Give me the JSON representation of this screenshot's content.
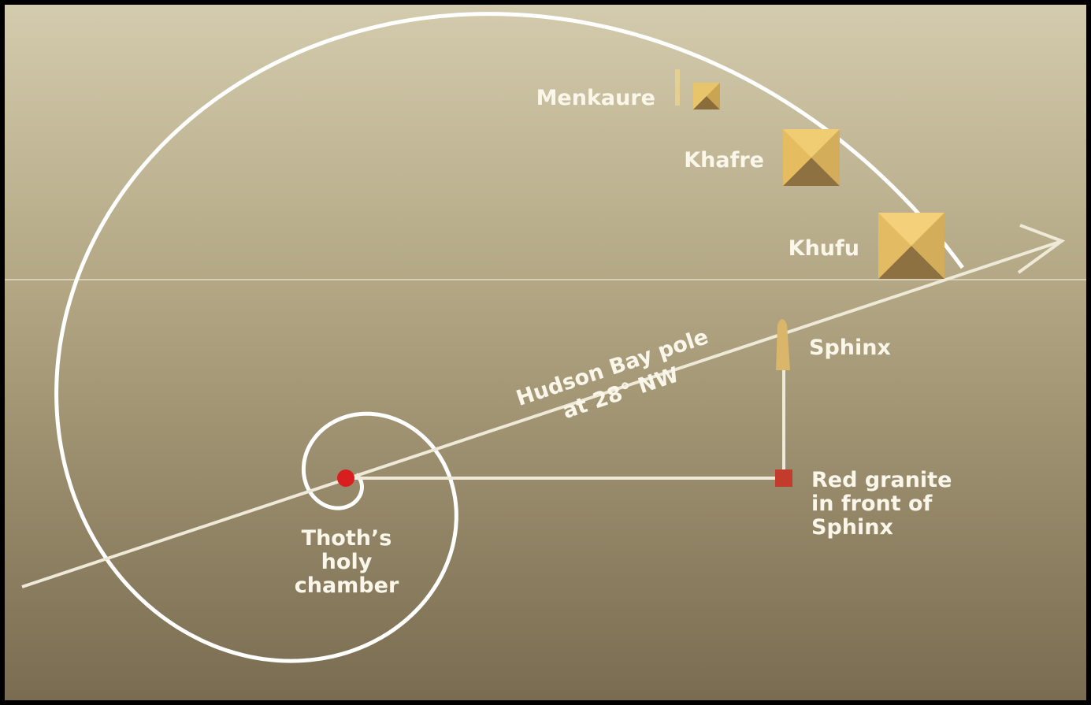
{
  "labels": {
    "menkaure": "Menkaure",
    "khafre": "Khafre",
    "khufu": "Khufu",
    "sphinx": "Sphinx",
    "pole": [
      "Hudson Bay pole",
      "at 28° NW"
    ],
    "granite": [
      "Red granite",
      "in front of",
      "Sphinx"
    ],
    "chamber": [
      "Thoth’s",
      "holy",
      "chamber"
    ]
  }
}
